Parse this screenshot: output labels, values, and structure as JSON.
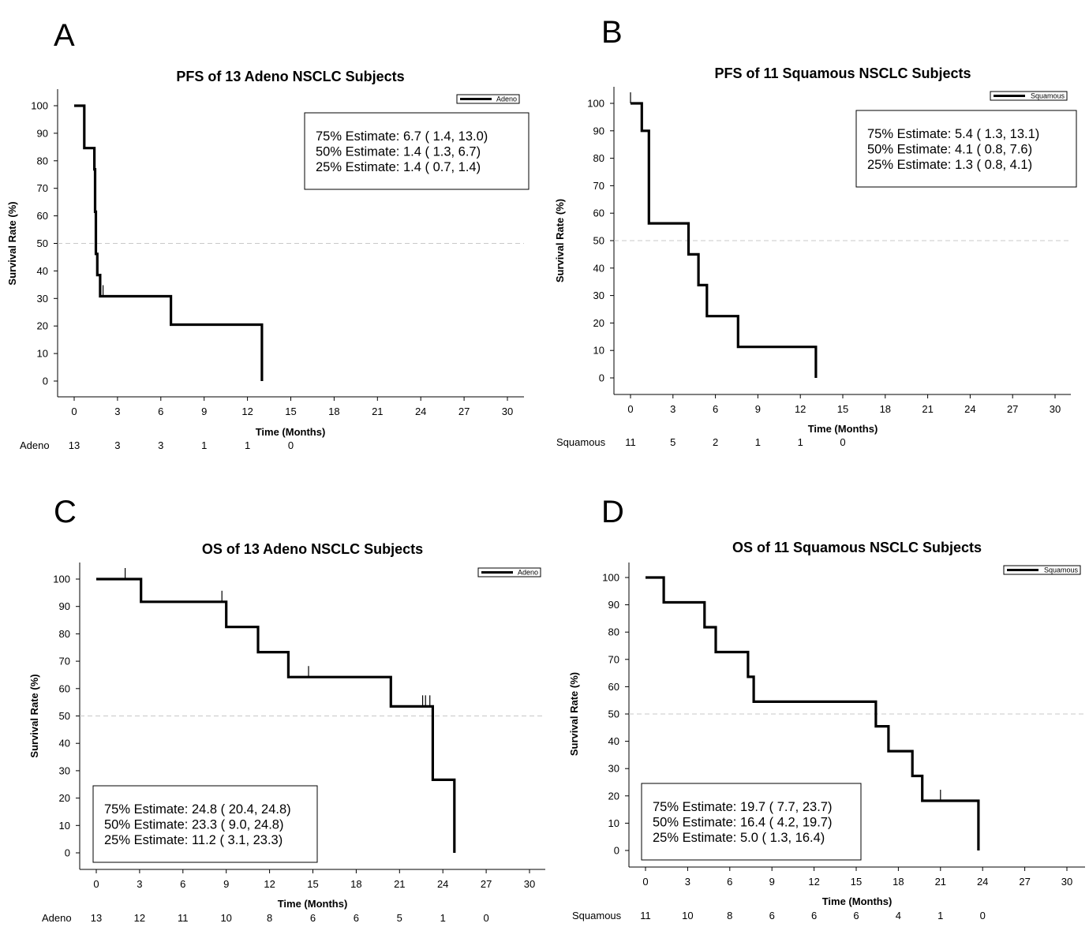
{
  "panels": [
    {
      "letter": "A",
      "chart_data": {
        "type": "line",
        "title": "PFS of 13 Adeno NSCLC Subjects",
        "xlabel": "Time (Months)",
        "ylabel": "Survival Rate (%)",
        "xlim": [
          0,
          30
        ],
        "ylim": [
          0,
          100
        ],
        "xticks": [
          "0",
          "3",
          "6",
          "9",
          "12",
          "15",
          "18",
          "21",
          "24",
          "27",
          "30"
        ],
        "yticks": [
          "0",
          "10",
          "20",
          "30",
          "40",
          "50",
          "60",
          "70",
          "80",
          "90",
          "100"
        ],
        "reference_line": 50,
        "legend": {
          "label": "Adeno",
          "placement": "top-right"
        },
        "series": [
          {
            "name": "Adeno",
            "steps": [
              [
                0,
                100
              ],
              [
                0.7,
                100
              ],
              [
                0.7,
                84.6
              ],
              [
                1.4,
                84.6
              ],
              [
                1.4,
                76.9
              ],
              [
                1.45,
                76.9
              ],
              [
                1.45,
                61.5
              ],
              [
                1.5,
                61.5
              ],
              [
                1.5,
                46.2
              ],
              [
                1.6,
                46.2
              ],
              [
                1.6,
                38.5
              ],
              [
                1.8,
                38.5
              ],
              [
                1.8,
                30.8
              ],
              [
                6.7,
                30.8
              ],
              [
                6.7,
                20.5
              ],
              [
                13.0,
                20.5
              ],
              [
                13.0,
                0
              ]
            ],
            "censored": [
              [
                2.0,
                30.8
              ]
            ]
          }
        ],
        "estimates": [
          "75% Estimate:  6.7 (  1.4,  13.0)",
          "50% Estimate:  1.4 (  1.3,    6.7)",
          "25% Estimate:  1.4 (  0.7,    1.4)"
        ],
        "risk_table": {
          "label": "Adeno",
          "times": [
            0,
            3,
            6,
            9,
            12,
            15
          ],
          "values": [
            "13",
            "3",
            "3",
            "1",
            "1",
            "0"
          ]
        }
      }
    },
    {
      "letter": "B",
      "chart_data": {
        "type": "line",
        "title": "PFS of 11 Squamous NSCLC Subjects",
        "xlabel": "Time (Months)",
        "ylabel": "Survival Rate (%)",
        "xlim": [
          0,
          30
        ],
        "ylim": [
          0,
          100
        ],
        "xticks": [
          "0",
          "3",
          "6",
          "9",
          "12",
          "15",
          "18",
          "21",
          "24",
          "27",
          "30"
        ],
        "yticks": [
          "0",
          "10",
          "20",
          "30",
          "40",
          "50",
          "60",
          "70",
          "80",
          "90",
          "100"
        ],
        "reference_line": 50,
        "legend": {
          "label": "Squamous",
          "placement": "top-right"
        },
        "series": [
          {
            "name": "Squamous",
            "steps": [
              [
                0,
                100
              ],
              [
                0.8,
                100
              ],
              [
                0.8,
                90.0
              ],
              [
                1.3,
                90.0
              ],
              [
                1.3,
                56.3
              ],
              [
                4.1,
                56.3
              ],
              [
                4.1,
                45.0
              ],
              [
                4.8,
                45.0
              ],
              [
                4.8,
                33.8
              ],
              [
                5.4,
                33.8
              ],
              [
                5.4,
                22.5
              ],
              [
                7.6,
                22.5
              ],
              [
                7.6,
                11.3
              ],
              [
                13.1,
                11.3
              ],
              [
                13.1,
                0
              ]
            ],
            "censored": [
              [
                0,
                100
              ]
            ]
          }
        ],
        "estimates": [
          "75% Estimate:  5.4 (  1.3,  13.1)",
          "50% Estimate:  4.1 (  0.8,    7.6)",
          "25% Estimate:  1.3 (  0.8,    4.1)"
        ],
        "risk_table": {
          "label": "Squamous",
          "times": [
            0,
            3,
            6,
            9,
            12,
            15
          ],
          "values": [
            "11",
            "5",
            "2",
            "1",
            "1",
            "0"
          ]
        }
      }
    },
    {
      "letter": "C",
      "chart_data": {
        "type": "line",
        "title": "OS    of 13 Adeno NSCLC Subjects",
        "xlabel": "Time (Months)",
        "ylabel": "Survival Rate (%)",
        "xlim": [
          0,
          30
        ],
        "ylim": [
          0,
          100
        ],
        "xticks": [
          "0",
          "3",
          "6",
          "9",
          "12",
          "15",
          "18",
          "21",
          "24",
          "27",
          "30"
        ],
        "yticks": [
          "0",
          "10",
          "20",
          "30",
          "40",
          "50",
          "60",
          "70",
          "80",
          "90",
          "100"
        ],
        "reference_line": 50,
        "legend": {
          "label": "Adeno",
          "placement": "top-right"
        },
        "series": [
          {
            "name": "Adeno",
            "steps": [
              [
                0,
                100
              ],
              [
                3.1,
                100
              ],
              [
                3.1,
                91.7
              ],
              [
                9.0,
                91.7
              ],
              [
                9.0,
                82.5
              ],
              [
                11.2,
                82.5
              ],
              [
                11.2,
                73.3
              ],
              [
                13.3,
                73.3
              ],
              [
                13.3,
                64.2
              ],
              [
                20.4,
                64.2
              ],
              [
                20.4,
                53.5
              ],
              [
                23.3,
                53.5
              ],
              [
                23.3,
                26.7
              ],
              [
                24.8,
                26.7
              ],
              [
                24.8,
                0
              ]
            ],
            "censored": [
              [
                2.0,
                100
              ],
              [
                8.7,
                91.7
              ],
              [
                14.7,
                64.2
              ],
              [
                22.6,
                53.5
              ],
              [
                22.8,
                53.5
              ],
              [
                23.1,
                53.5
              ]
            ]
          }
        ],
        "estimates": [
          "75% Estimate: 24.8 ( 20.4,  24.8)",
          "50% Estimate: 23.3 (  9.0,  24.8)",
          "25% Estimate: 11.2 (  3.1,  23.3)"
        ],
        "risk_table": {
          "label": "Adeno",
          "times": [
            0,
            3,
            6,
            9,
            12,
            15,
            18,
            21,
            24,
            27
          ],
          "values": [
            "13",
            "12",
            "11",
            "10",
            "8",
            "6",
            "6",
            "5",
            "1",
            "0"
          ]
        }
      }
    },
    {
      "letter": "D",
      "chart_data": {
        "type": "line",
        "title": "OS of 11 Squamous NSCLC Subjects",
        "xlabel": "Time (Months)",
        "ylabel": "Survival Rate (%)",
        "xlim": [
          0,
          30
        ],
        "ylim": [
          0,
          100
        ],
        "xticks": [
          "0",
          "3",
          "6",
          "9",
          "12",
          "15",
          "18",
          "21",
          "24",
          "27",
          "30"
        ],
        "yticks": [
          "0",
          "10",
          "20",
          "30",
          "40",
          "50",
          "60",
          "70",
          "80",
          "90",
          "100"
        ],
        "reference_line": 50,
        "legend": {
          "label": "Squamous",
          "placement": "top-right"
        },
        "series": [
          {
            "name": "Squamous",
            "steps": [
              [
                0,
                100
              ],
              [
                1.3,
                100
              ],
              [
                1.3,
                90.9
              ],
              [
                4.2,
                90.9
              ],
              [
                4.2,
                81.8
              ],
              [
                5.0,
                81.8
              ],
              [
                5.0,
                72.7
              ],
              [
                7.3,
                72.7
              ],
              [
                7.3,
                63.6
              ],
              [
                7.7,
                63.6
              ],
              [
                7.7,
                54.5
              ],
              [
                16.4,
                54.5
              ],
              [
                16.4,
                45.5
              ],
              [
                17.3,
                45.5
              ],
              [
                17.3,
                36.4
              ],
              [
                19.0,
                36.4
              ],
              [
                19.0,
                27.3
              ],
              [
                19.7,
                27.3
              ],
              [
                19.7,
                18.2
              ],
              [
                23.7,
                18.2
              ],
              [
                23.7,
                0
              ]
            ],
            "censored": [
              [
                21.0,
                18.2
              ]
            ]
          }
        ],
        "estimates": [
          "75% Estimate: 19.7 (  7.7,  23.7)",
          "50% Estimate: 16.4 (  4.2,  19.7)",
          "25% Estimate:  5.0 (  1.3,  16.4)"
        ],
        "risk_table": {
          "label": "Squamous",
          "times": [
            0,
            3,
            6,
            9,
            12,
            15,
            18,
            21,
            24
          ],
          "values": [
            "11",
            "10",
            "8",
            "6",
            "6",
            "6",
            "4",
            "1",
            "0"
          ]
        }
      }
    }
  ]
}
